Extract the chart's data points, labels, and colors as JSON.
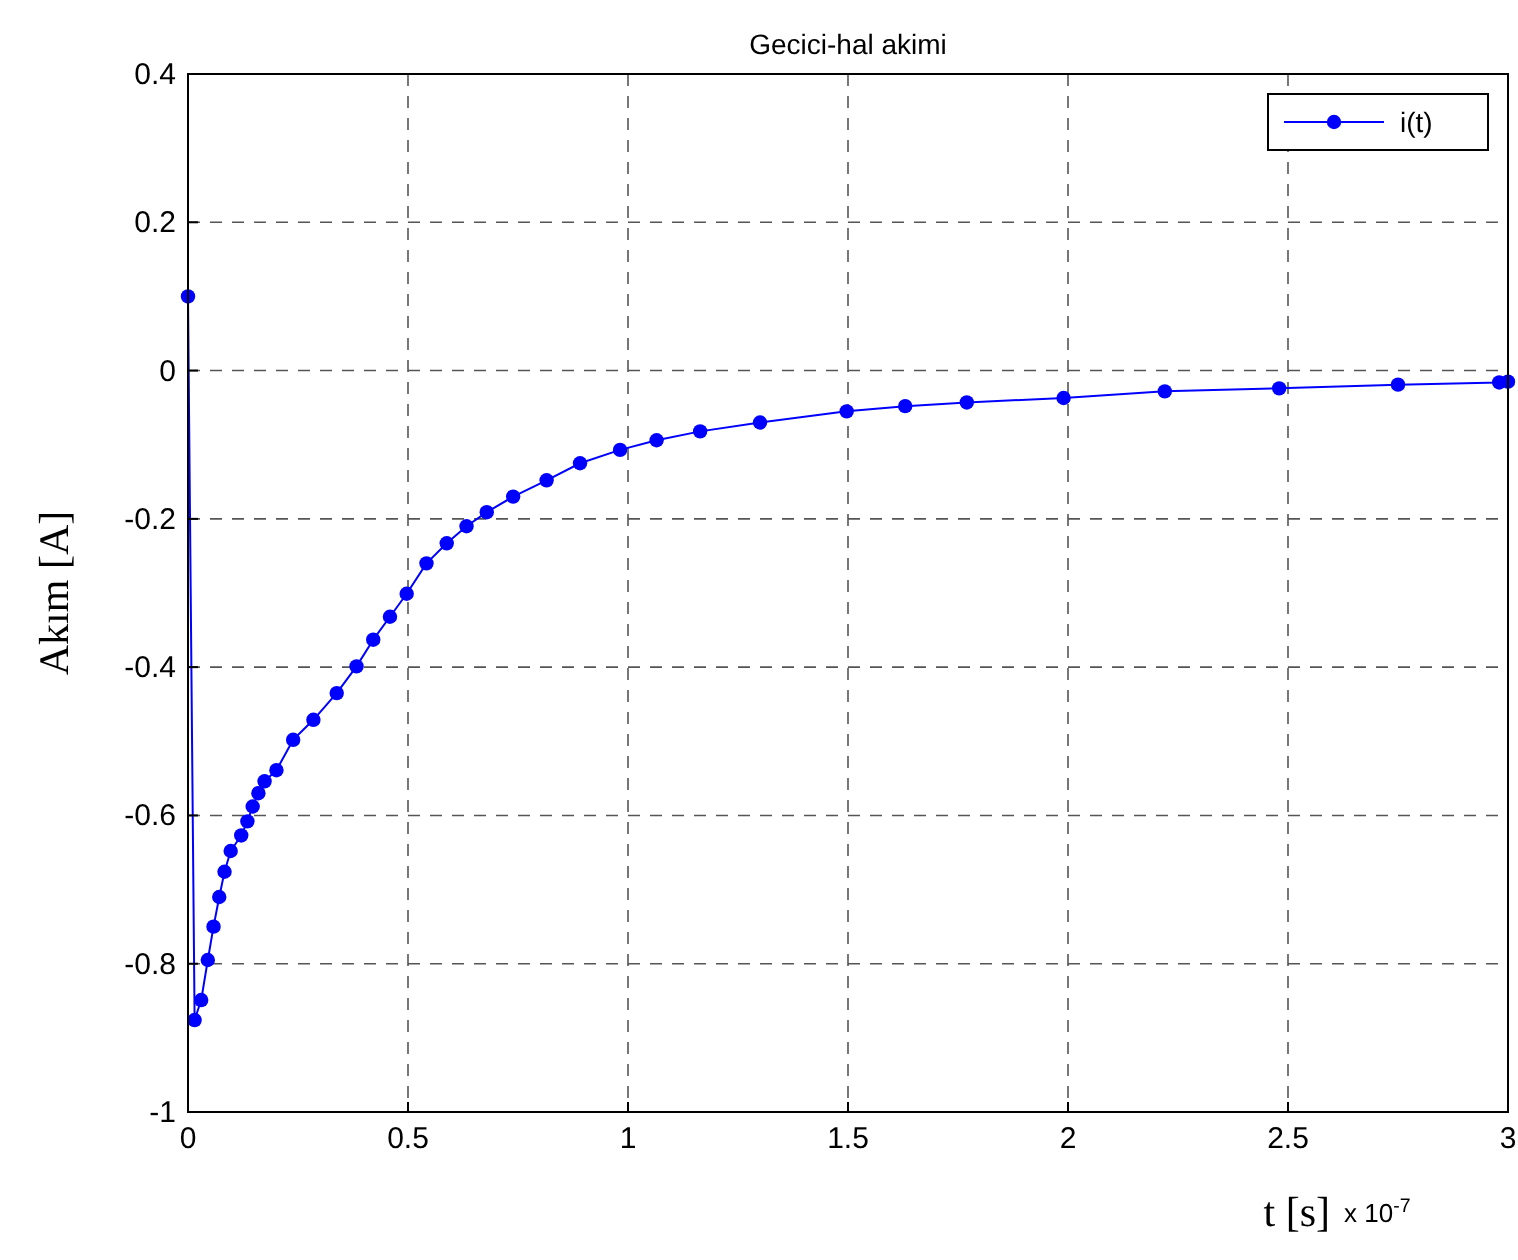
{
  "chart_data": {
    "type": "line",
    "title": "Gecici-hal akimi",
    "xlabel": "t [s]",
    "ylabel": "Akım [A]",
    "annotations": [
      "x 10$^{-7}$"
    ],
    "series": [
      {
        "name": "i(t)",
        "color": "#0000ff",
        "x": [
          0,
          0.015,
          0.03,
          0.045,
          0.058,
          0.071,
          0.083,
          0.097,
          0.121,
          0.135,
          0.147,
          0.16,
          0.174,
          0.201,
          0.239,
          0.285,
          0.338,
          0.383,
          0.421,
          0.459,
          0.497,
          0.542,
          0.588,
          0.633,
          0.679,
          0.739,
          0.815,
          0.891,
          0.982,
          1.065,
          1.164,
          1.3,
          1.497,
          1.63,
          1.77,
          1.99,
          2.22,
          2.48,
          2.75,
          2.98,
          3
        ],
        "values": [
          0.1,
          -0.876,
          -0.849,
          -0.795,
          -0.75,
          -0.71,
          -0.676,
          -0.648,
          -0.627,
          -0.608,
          -0.588,
          -0.57,
          -0.554,
          -0.539,
          -0.498,
          -0.471,
          -0.435,
          -0.399,
          -0.363,
          -0.332,
          -0.301,
          -0.26,
          -0.233,
          -0.21,
          -0.191,
          -0.17,
          -0.148,
          -0.125,
          -0.107,
          -0.094,
          -0.082,
          -0.07,
          -0.055,
          -0.048,
          -0.043,
          -0.037,
          -0.028,
          -0.024,
          -0.019,
          -0.016,
          -0.015
        ]
      }
    ],
    "xlim": [
      0,
      3
    ],
    "xticks": [
      0,
      0.5,
      1,
      1.5,
      2,
      2.5,
      3
    ],
    "ylim": [
      -1,
      0.4
    ],
    "yticks": [
      -1,
      -0.8,
      -0.6,
      -0.4,
      -0.2,
      0,
      0.2,
      0.4
    ],
    "grid": true,
    "legend": "top right",
    "marker": "circle",
    "line_style": "solid"
  }
}
